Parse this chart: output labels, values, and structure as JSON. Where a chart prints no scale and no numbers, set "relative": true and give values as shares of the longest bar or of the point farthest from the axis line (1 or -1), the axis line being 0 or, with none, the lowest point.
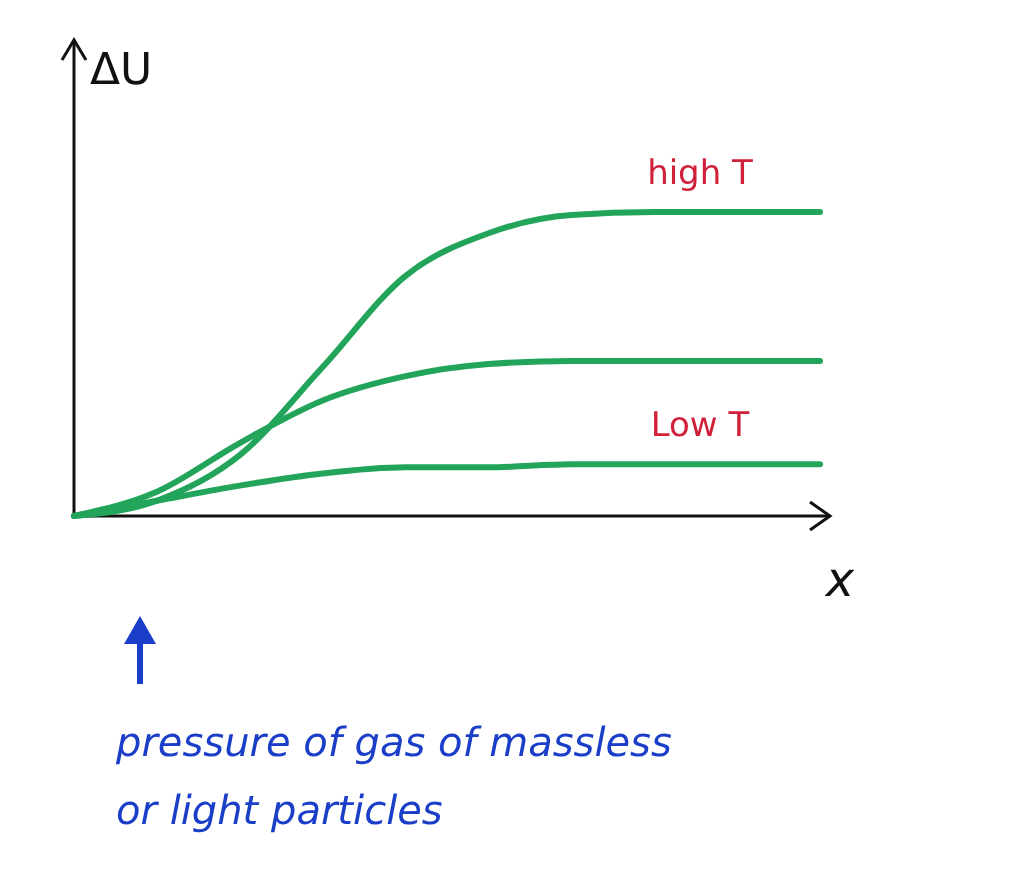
{
  "chart_data": {
    "type": "line",
    "relative": true,
    "ylabel": "ΔU",
    "xlabel": "x",
    "categories": [
      null,
      null,
      null,
      null,
      null,
      null,
      null,
      null,
      null,
      null
    ],
    "series": [
      {
        "name": "high T",
        "color": "#22a55a",
        "values": [
          0,
          0.05,
          0.2,
          0.49,
          0.79,
          0.93,
          0.99,
          1,
          1,
          1
        ]
      },
      {
        "color": "#22a55a",
        "values": [
          0,
          0.08,
          0.24,
          0.38,
          0.46,
          0.5,
          0.51,
          0.51,
          0.51,
          0.51
        ]
      },
      {
        "name": "Low T",
        "color": "#22a55a",
        "values": [
          0,
          0.05,
          0.1,
          0.14,
          0.16,
          0.16,
          0.17,
          0.17,
          0.17,
          0.17
        ]
      }
    ],
    "annotations": [
      "pressure of gas of massless or light particles"
    ]
  }
}
